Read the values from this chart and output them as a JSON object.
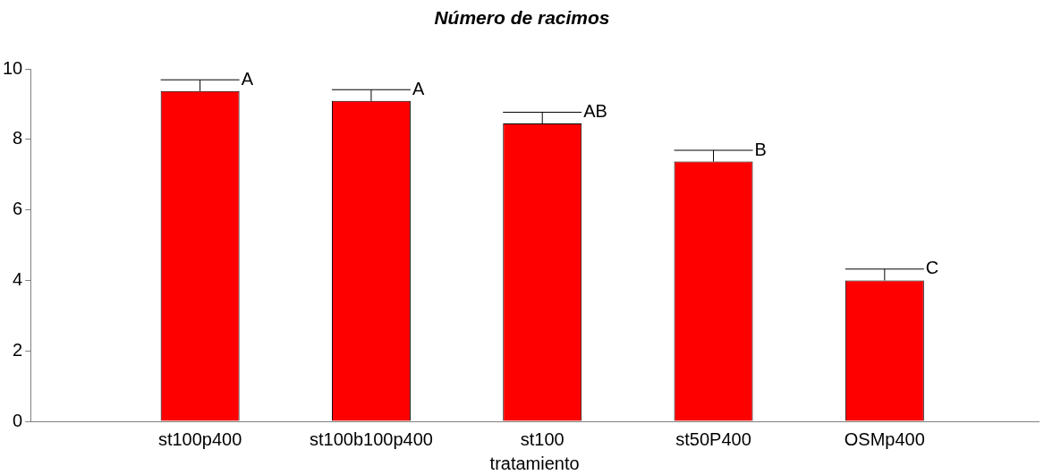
{
  "chart_data": {
    "type": "bar",
    "title": "Número de racimos",
    "xlabel": "tratamiento",
    "categories": [
      "st100p400",
      "st100b100p400",
      "st100",
      "st50P400",
      "OSMp400"
    ],
    "values": [
      9.37,
      9.09,
      8.45,
      7.37,
      4.0
    ],
    "errors": [
      [
        9.37,
        9.69
      ],
      [
        9.09,
        9.41
      ],
      [
        8.45,
        8.77
      ],
      [
        7.37,
        7.69
      ],
      [
        4.0,
        4.32
      ]
    ],
    "color": "#ff0000",
    "ylim": [
      0,
      10
    ],
    "yticks": [
      0,
      2,
      4,
      6,
      8,
      10
    ],
    "grid": false,
    "legend": false,
    "annotations": [
      "A",
      "A",
      "AB",
      "B",
      "C"
    ]
  }
}
